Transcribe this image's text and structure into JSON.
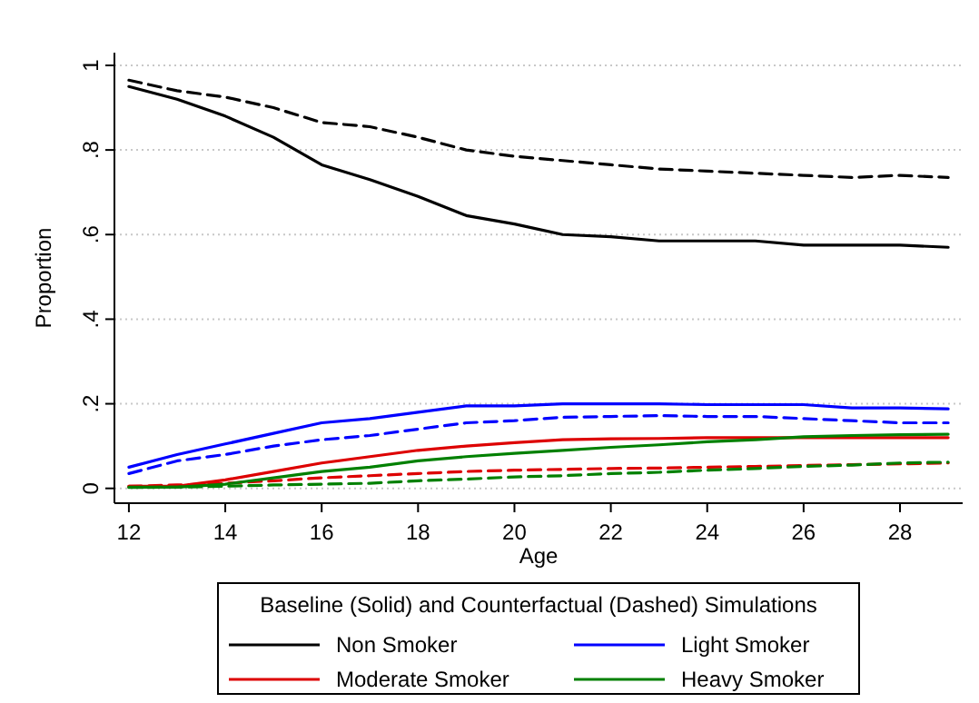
{
  "chart_data": {
    "type": "line",
    "xlabel": "Age",
    "ylabel": "Proportion",
    "legend_title": "Baseline (Solid) and Counterfactual (Dashed) Simulations",
    "x": [
      12,
      13,
      14,
      15,
      16,
      17,
      18,
      19,
      20,
      21,
      22,
      23,
      24,
      25,
      26,
      27,
      28,
      29
    ],
    "xlim": [
      11.7,
      29.3
    ],
    "xticks": [
      12,
      14,
      16,
      18,
      20,
      22,
      24,
      26,
      28
    ],
    "ylim": [
      -0.035,
      1.03
    ],
    "yticks": [
      0,
      {
        "value": 0.2,
        "label": ".2"
      },
      {
        "value": 0.4,
        "label": ".4"
      },
      {
        "value": 0.6,
        "label": ".6"
      },
      {
        "value": 0.8,
        "label": ".8"
      },
      1
    ],
    "grid": "y",
    "legend": "bottom",
    "series": [
      {
        "name": "Non Smoker",
        "color": "#000000",
        "line_style": "solid",
        "values": [
          0.95,
          0.92,
          0.88,
          0.83,
          0.765,
          0.73,
          0.69,
          0.645,
          0.625,
          0.6,
          0.595,
          0.585,
          0.585,
          0.585,
          0.575,
          0.575,
          0.575,
          0.57
        ]
      },
      {
        "color": "#000000",
        "line_style": "dashed",
        "values": [
          0.965,
          0.94,
          0.925,
          0.9,
          0.865,
          0.855,
          0.83,
          0.8,
          0.785,
          0.775,
          0.765,
          0.755,
          0.75,
          0.745,
          0.74,
          0.735,
          0.74,
          0.735
        ]
      },
      {
        "name": "Light Smoker",
        "color": "#0000ff",
        "line_style": "solid",
        "values": [
          0.05,
          0.08,
          0.105,
          0.13,
          0.155,
          0.165,
          0.18,
          0.195,
          0.195,
          0.2,
          0.2,
          0.2,
          0.198,
          0.198,
          0.198,
          0.19,
          0.19,
          0.188
        ]
      },
      {
        "color": "#0000ff",
        "line_style": "dashed",
        "values": [
          0.035,
          0.065,
          0.08,
          0.1,
          0.115,
          0.125,
          0.14,
          0.155,
          0.16,
          0.168,
          0.17,
          0.172,
          0.17,
          0.17,
          0.165,
          0.16,
          0.155,
          0.155
        ]
      },
      {
        "name": "Moderate Smoker",
        "color": "#dd0000",
        "line_style": "solid",
        "values": [
          0.005,
          0.005,
          0.02,
          0.04,
          0.06,
          0.075,
          0.09,
          0.1,
          0.108,
          0.115,
          0.117,
          0.118,
          0.12,
          0.12,
          0.12,
          0.12,
          0.12,
          0.12
        ]
      },
      {
        "color": "#dd0000",
        "line_style": "dashed",
        "values": [
          0.005,
          0.008,
          0.012,
          0.018,
          0.025,
          0.03,
          0.035,
          0.04,
          0.043,
          0.045,
          0.047,
          0.048,
          0.05,
          0.052,
          0.054,
          0.056,
          0.058,
          0.06
        ]
      },
      {
        "name": "Heavy Smoker",
        "color": "#008000",
        "line_style": "solid",
        "values": [
          0.003,
          0.003,
          0.01,
          0.025,
          0.04,
          0.05,
          0.065,
          0.075,
          0.083,
          0.09,
          0.097,
          0.103,
          0.11,
          0.115,
          0.122,
          0.125,
          0.127,
          0.128
        ]
      },
      {
        "color": "#008000",
        "line_style": "dashed",
        "values": [
          0.002,
          0.003,
          0.005,
          0.008,
          0.01,
          0.012,
          0.018,
          0.022,
          0.027,
          0.03,
          0.035,
          0.038,
          0.043,
          0.047,
          0.052,
          0.055,
          0.06,
          0.062
        ]
      }
    ]
  }
}
